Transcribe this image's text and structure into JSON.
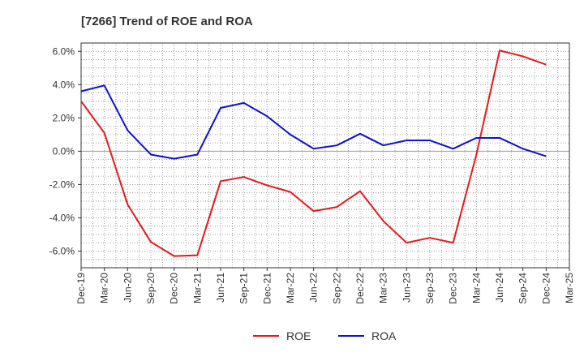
{
  "chart_data": {
    "type": "line",
    "title": "[7266]  Trend of ROE and ROA",
    "xlabel": "",
    "ylabel": "",
    "x": [
      "Dec-19",
      "Mar-20",
      "Jun-20",
      "Sep-20",
      "Dec-20",
      "Mar-21",
      "Jun-21",
      "Sep-21",
      "Dec-21",
      "Mar-22",
      "Jun-22",
      "Sep-22",
      "Dec-22",
      "Mar-23",
      "Jun-23",
      "Sep-23",
      "Dec-23",
      "Mar-24",
      "Jun-24",
      "Sep-24",
      "Dec-24",
      "Mar-25"
    ],
    "ylim": [
      -7.0,
      6.5
    ],
    "yticks": [
      6.0,
      4.0,
      2.0,
      0.0,
      -2.0,
      -4.0,
      -6.0
    ],
    "ytick_labels": [
      "6.0%",
      "4.0%",
      "2.0%",
      "0.0%",
      "-2.0%",
      "-4.0%",
      "-6.0%"
    ],
    "grid": true,
    "legend_position": "bottom-center",
    "series": [
      {
        "name": "ROE",
        "color": "#e31a1c",
        "values": [
          3.0,
          1.1,
          -3.2,
          -5.45,
          -6.3,
          -6.25,
          -1.8,
          -1.55,
          -2.05,
          -2.45,
          -3.6,
          -3.35,
          -2.4,
          -4.2,
          -5.5,
          -5.2,
          -5.5,
          -0.2,
          6.05,
          5.7,
          5.2,
          null
        ]
      },
      {
        "name": "ROA",
        "color": "#1010d0",
        "values": [
          3.6,
          3.95,
          1.25,
          -0.2,
          -0.45,
          -0.2,
          2.6,
          2.9,
          2.1,
          1.0,
          0.15,
          0.35,
          1.05,
          0.35,
          0.65,
          0.65,
          0.15,
          0.8,
          0.8,
          0.15,
          -0.3,
          null
        ]
      }
    ]
  }
}
